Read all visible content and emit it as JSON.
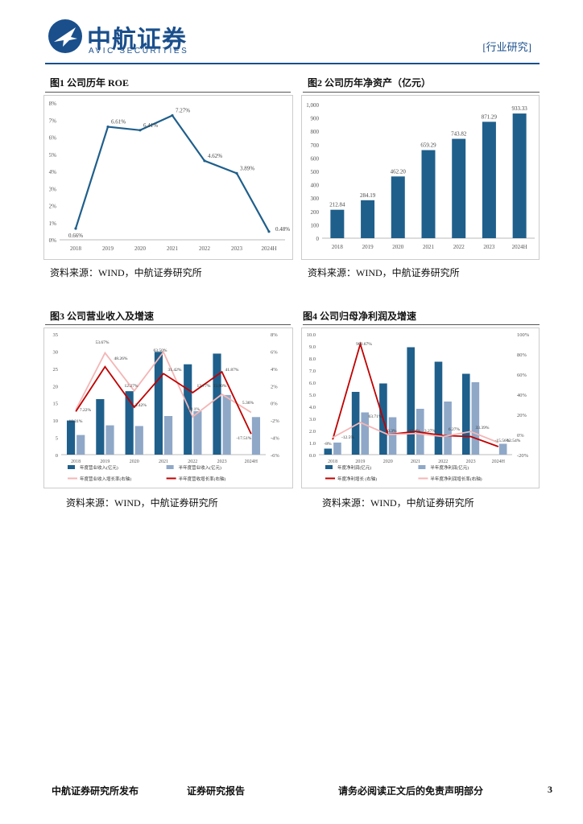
{
  "header": {
    "logo_cn": "中航证券",
    "logo_en": "AVIC SECURITIES",
    "report_type": "[行业研究]"
  },
  "figures": {
    "f1": {
      "title": "图1 公司历年 ROE",
      "source": "资料来源：WIND，中航证券研究所"
    },
    "f2": {
      "title": "图2 公司历年净资产（亿元）",
      "source": "资料来源：WIND，中航证券研究所"
    },
    "f3": {
      "title": "图3 公司营业收入及增速",
      "source": "资料来源：WIND，中航证券研究所"
    },
    "f4": {
      "title": "图4 公司归母净利润及增速",
      "source": "资料来源：WIND，中航证券研究所"
    }
  },
  "chart_data": [
    {
      "id": "f1",
      "type": "line",
      "categories": [
        "2018",
        "2019",
        "2020",
        "2021",
        "2022",
        "2023",
        "2024H"
      ],
      "values": [
        0.66,
        6.61,
        6.41,
        7.27,
        4.62,
        3.89,
        0.48
      ],
      "labels": [
        "0.66%",
        "6.61%",
        "6.41%",
        "7.27%",
        "4.62%",
        "3.89%",
        "0.48%"
      ],
      "ylim": [
        0,
        8
      ],
      "yticks": [
        "0%",
        "1%",
        "2%",
        "3%",
        "4%",
        "5%",
        "6%",
        "7%",
        "8%"
      ],
      "color": "#1f5f8b"
    },
    {
      "id": "f2",
      "type": "bar",
      "categories": [
        "2018",
        "2019",
        "2020",
        "2021",
        "2022",
        "2023",
        "2024H"
      ],
      "values": [
        212.84,
        284.19,
        462.2,
        659.29,
        743.82,
        871.29,
        933.33
      ],
      "labels": [
        "212.84",
        "284.19",
        "462.20",
        "659.29",
        "743.82",
        "871.29",
        "933.33"
      ],
      "ylim": [
        0,
        1000
      ],
      "yticks": [
        "0",
        "100",
        "200",
        "300",
        "400",
        "500",
        "600",
        "700",
        "800",
        "900",
        "1,000"
      ],
      "color": "#1f5f8b"
    },
    {
      "id": "f3",
      "type": "bar+line",
      "categories": [
        "2018",
        "2019",
        "2020",
        "2021",
        "2022",
        "2023",
        "2024H"
      ],
      "bars_left": [
        {
          "name": "年度营业收入(亿元)",
          "values": [
            9.9,
            16.1,
            18.4,
            29.8,
            26.2,
            29.3,
            null
          ],
          "color": "#1f5f8b"
        },
        {
          "name": "半年度营业收入(亿元)",
          "values": [
            5.7,
            8.5,
            8.3,
            11.2,
            12.6,
            17.3,
            10.9
          ],
          "color": "#8fa8c8"
        }
      ],
      "lines_right": [
        {
          "name": "年度营业收入增长率(右轴)",
          "values": [
            -0.8,
            5.8,
            1.4,
            5.9,
            -1.6,
            1.0,
            -1.1
          ],
          "color": "#f4b6b6"
        },
        {
          "name": "半年度营收增长率(右轴)",
          "values": [
            -1.0,
            4.2,
            -0.5,
            3.4,
            1.2,
            3.6,
            -3.6
          ],
          "color": "#c00000"
        }
      ],
      "annotations": [
        "10.31%",
        "7.22%",
        "53.67%",
        "48.26%",
        "12.27%",
        "-3.42%",
        "63.50%",
        "31.42%",
        "-12.1%",
        "12.77%",
        "33.80%",
        "41.87%",
        "5.36%",
        "-17.51%"
      ],
      "ylim_left": [
        0,
        35
      ],
      "yticks_left": [
        "0",
        "5",
        "10",
        "15",
        "20",
        "25",
        "30",
        "35"
      ],
      "ylim_right": [
        -6,
        8
      ],
      "yticks_right": [
        "-6%",
        "-4%",
        "-2%",
        "0%",
        "2%",
        "4%",
        "6%",
        "8%"
      ],
      "legend": [
        "年度营业收入(亿元)",
        "半年度营业收入(亿元)",
        "年度营业收入增长率(右轴)",
        "半年度营收增长率(右轴)"
      ]
    },
    {
      "id": "f4",
      "type": "bar+line",
      "categories": [
        "2018",
        "2019",
        "2020",
        "2021",
        "2022",
        "2023",
        "2024H"
      ],
      "bars_left": [
        {
          "name": "年度净利润(亿元)",
          "values": [
            0.5,
            5.2,
            5.9,
            8.9,
            7.7,
            6.7,
            null
          ],
          "color": "#1f5f8b"
        },
        {
          "name": "半年度净利润(亿元)",
          "values": [
            1.0,
            3.5,
            3.1,
            3.8,
            4.4,
            6.0,
            0.9
          ],
          "color": "#8fa8c8"
        }
      ],
      "lines_right": [
        {
          "name": "年度净利增长 (右轴)",
          "values": [
            -5,
            90,
            0,
            3,
            -1,
            -2,
            -12
          ],
          "color": "#c00000"
        },
        {
          "name": "半年度净利润增长率(右轴)",
          "values": [
            -3,
            12,
            0,
            1,
            -2,
            3,
            -8
          ],
          "color": "#f4b6b6"
        }
      ],
      "annotations": [
        "-8%",
        "-12.5%",
        "900.67%",
        "63.71%",
        "-0.3%",
        "-15.4%",
        "3.27%",
        "6.27%",
        "33.39%",
        "-15.56%",
        "-12.54%"
      ],
      "ylim_left": [
        0,
        10
      ],
      "yticks_left": [
        "0.0",
        "1.0",
        "2.0",
        "3.0",
        "4.0",
        "5.0",
        "6.0",
        "7.0",
        "8.0",
        "9.0",
        "10.0"
      ],
      "ylim_right": [
        -20,
        100
      ],
      "yticks_right": [
        "-20%",
        "0%",
        "20%",
        "40%",
        "60%",
        "80%",
        "100%"
      ],
      "legend": [
        "年度净利润(亿元)",
        "半年度净利润(亿元)",
        "年度净利增长 (右轴)",
        "半年度净利润增长率(右轴)"
      ]
    }
  ],
  "footer": {
    "left": "中航证券研究所发布",
    "center": "证券研究报告",
    "right": "请务必阅读正文后的免责声明部分",
    "page": "3"
  }
}
